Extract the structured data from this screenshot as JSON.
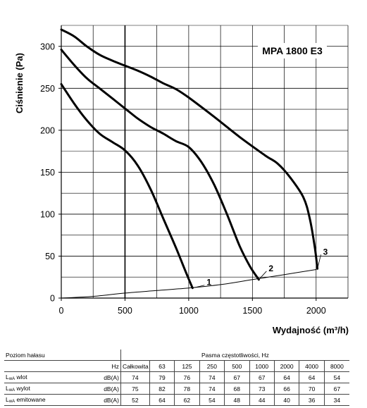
{
  "chart_data": {
    "type": "line",
    "title": "MPA 1800 E3",
    "xlabel": "Wydajność (m³/h)",
    "ylabel": "Ciśnienie (Pa)",
    "xlim": [
      0,
      2250
    ],
    "ylim": [
      0,
      325
    ],
    "x_ticks": [
      0,
      500,
      1000,
      1500,
      2000
    ],
    "y_ticks": [
      0,
      50,
      100,
      150,
      200,
      250,
      300
    ],
    "grid": true,
    "series": [
      {
        "name": "1",
        "points": [
          [
            0,
            255
          ],
          [
            100,
            232
          ],
          [
            200,
            212
          ],
          [
            300,
            196
          ],
          [
            400,
            186
          ],
          [
            500,
            176
          ],
          [
            600,
            158
          ],
          [
            700,
            130
          ],
          [
            800,
            95
          ],
          [
            900,
            60
          ],
          [
            980,
            30
          ],
          [
            1030,
            12
          ]
        ]
      },
      {
        "name": "2",
        "points": [
          [
            0,
            296
          ],
          [
            100,
            278
          ],
          [
            200,
            262
          ],
          [
            300,
            250
          ],
          [
            400,
            238
          ],
          [
            500,
            226
          ],
          [
            600,
            214
          ],
          [
            700,
            204
          ],
          [
            800,
            196
          ],
          [
            900,
            187
          ],
          [
            1000,
            180
          ],
          [
            1100,
            162
          ],
          [
            1200,
            135
          ],
          [
            1300,
            100
          ],
          [
            1400,
            62
          ],
          [
            1480,
            38
          ],
          [
            1550,
            22
          ]
        ]
      },
      {
        "name": "3",
        "points": [
          [
            0,
            320
          ],
          [
            100,
            312
          ],
          [
            200,
            300
          ],
          [
            300,
            290
          ],
          [
            400,
            283
          ],
          [
            500,
            277
          ],
          [
            600,
            271
          ],
          [
            700,
            264
          ],
          [
            800,
            256
          ],
          [
            900,
            249
          ],
          [
            1000,
            239
          ],
          [
            1200,
            216
          ],
          [
            1400,
            192
          ],
          [
            1600,
            170
          ],
          [
            1700,
            160
          ],
          [
            1800,
            143
          ],
          [
            1900,
            120
          ],
          [
            1950,
            95
          ],
          [
            1990,
            60
          ],
          [
            2010,
            35
          ]
        ]
      },
      {
        "name": "system",
        "points": [
          [
            0,
            0
          ],
          [
            250,
            2
          ],
          [
            500,
            6
          ],
          [
            750,
            9
          ],
          [
            1000,
            12
          ],
          [
            1250,
            16
          ],
          [
            1500,
            22
          ],
          [
            1750,
            28
          ],
          [
            2000,
            34
          ]
        ]
      }
    ],
    "annotations": [
      "1",
      "2",
      "3"
    ]
  },
  "table": {
    "header_left": "Poziom hałasu",
    "header_group": "Pasma częstotliwości, Hz",
    "hz_label": "Hz",
    "columns": [
      "Całkowita",
      "63",
      "125",
      "250",
      "500",
      "1000",
      "2000",
      "4000",
      "8000"
    ],
    "rows": [
      {
        "label": "wlot",
        "unit": "dB(A)",
        "values": [
          "74",
          "79",
          "76",
          "74",
          "67",
          "67",
          "64",
          "64",
          "54"
        ]
      },
      {
        "label": "wylot",
        "unit": "dB(A)",
        "values": [
          "75",
          "82",
          "78",
          "74",
          "68",
          "73",
          "66",
          "70",
          "67"
        ]
      },
      {
        "label": "emitowane",
        "unit": "dB(A)",
        "values": [
          "52",
          "64",
          "62",
          "54",
          "48",
          "44",
          "40",
          "36",
          "34"
        ]
      }
    ],
    "row_prefix": "L",
    "row_subscript": "wA"
  }
}
